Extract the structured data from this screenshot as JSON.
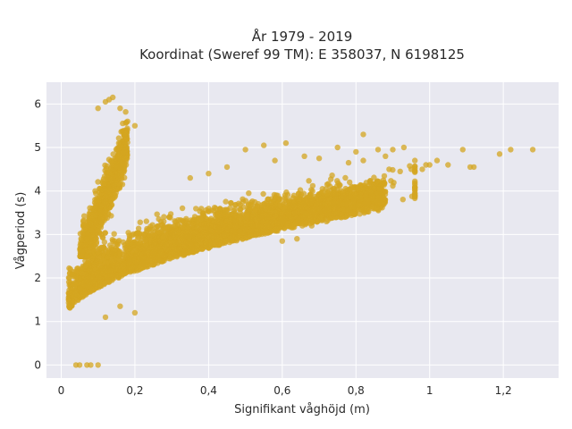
{
  "chart_data": {
    "type": "scatter",
    "title_line1": "År 1979 - 2019",
    "title_line2": "Koordinat (Sweref 99 TM): E 358037, N 6198125",
    "xlabel": "Signifikant våghöjd (m)",
    "ylabel": "Vågperiod (s)",
    "xlim": [
      -0.04,
      1.35
    ],
    "ylim": [
      -0.3,
      6.5
    ],
    "x_ticks": [
      {
        "value": 0,
        "label": "0"
      },
      {
        "value": 0.2,
        "label": "0,2"
      },
      {
        "value": 0.4,
        "label": "0,4"
      },
      {
        "value": 0.6,
        "label": "0,6"
      },
      {
        "value": 0.8,
        "label": "0,8"
      },
      {
        "value": 1.0,
        "label": "1"
      },
      {
        "value": 1.2,
        "label": "1,2"
      }
    ],
    "y_ticks": [
      {
        "value": 0,
        "label": "0"
      },
      {
        "value": 1,
        "label": "1"
      },
      {
        "value": 2,
        "label": "2"
      },
      {
        "value": 3,
        "label": "3"
      },
      {
        "value": 4,
        "label": "4"
      },
      {
        "value": 5,
        "label": "5"
      },
      {
        "value": 6,
        "label": "6"
      }
    ],
    "grid": true,
    "marker_color": "#d4a520",
    "plot_background": "#e8e8f0",
    "outlier_points": [
      [
        0.04,
        0
      ],
      [
        0.05,
        0
      ],
      [
        0.07,
        0
      ],
      [
        0.08,
        0
      ],
      [
        0.1,
        0
      ],
      [
        0.02,
        1.55
      ],
      [
        0.03,
        1.45
      ],
      [
        0.02,
        1.5
      ],
      [
        0.2,
        1.2
      ],
      [
        0.16,
        1.35
      ],
      [
        0.12,
        1.1
      ],
      [
        0.07,
        2.9
      ],
      [
        0.08,
        3.1
      ],
      [
        0.06,
        3.3
      ],
      [
        0.09,
        2.75
      ],
      [
        0.1,
        5.9
      ],
      [
        0.12,
        6.05
      ],
      [
        0.14,
        6.15
      ],
      [
        0.13,
        6.1
      ],
      [
        0.16,
        5.9
      ],
      [
        0.2,
        5.5
      ],
      [
        0.18,
        5.6
      ],
      [
        0.5,
        4.95
      ],
      [
        0.55,
        5.05
      ],
      [
        0.61,
        5.1
      ],
      [
        0.75,
        5.0
      ],
      [
        0.8,
        4.9
      ],
      [
        0.82,
        5.3
      ],
      [
        0.9,
        4.95
      ],
      [
        0.93,
        5.0
      ],
      [
        0.86,
        4.95
      ],
      [
        0.88,
        4.8
      ],
      [
        0.96,
        4.7
      ],
      [
        0.99,
        4.6
      ],
      [
        1.02,
        4.7
      ],
      [
        1.05,
        4.6
      ],
      [
        1.09,
        4.95
      ],
      [
        1.11,
        4.55
      ],
      [
        1.12,
        4.55
      ],
      [
        1.19,
        4.85
      ],
      [
        1.22,
        4.95
      ],
      [
        1.28,
        4.95
      ],
      [
        0.95,
        4.5
      ],
      [
        0.98,
        4.5
      ],
      [
        1.0,
        4.6
      ],
      [
        0.92,
        4.45
      ],
      [
        0.89,
        4.5
      ],
      [
        0.82,
        4.7
      ],
      [
        0.78,
        4.65
      ],
      [
        0.7,
        4.75
      ],
      [
        0.66,
        4.8
      ],
      [
        0.58,
        4.7
      ],
      [
        0.45,
        4.55
      ],
      [
        0.4,
        4.4
      ],
      [
        0.35,
        4.3
      ],
      [
        0.72,
        3.3
      ],
      [
        0.77,
        3.4
      ],
      [
        0.68,
        3.2
      ],
      [
        0.64,
        2.9
      ],
      [
        0.6,
        2.85
      ]
    ],
    "clusters": [
      {
        "name": "upper",
        "count": 900,
        "x_range": [
          0.05,
          0.18
        ],
        "y_center_intercept": 2.4,
        "y_center_slope": 21.0,
        "y_spread": 0.55,
        "y_min": 2.5,
        "y_max": 6.15
      },
      {
        "name": "main",
        "count": 3600,
        "x_range": [
          0.045,
          0.88
        ],
        "y_spread_base": 0.45
      },
      {
        "name": "main-edges",
        "count": 700,
        "x_range": [
          0.02,
          0.96
        ],
        "y_spread_base": 0.7
      }
    ]
  }
}
